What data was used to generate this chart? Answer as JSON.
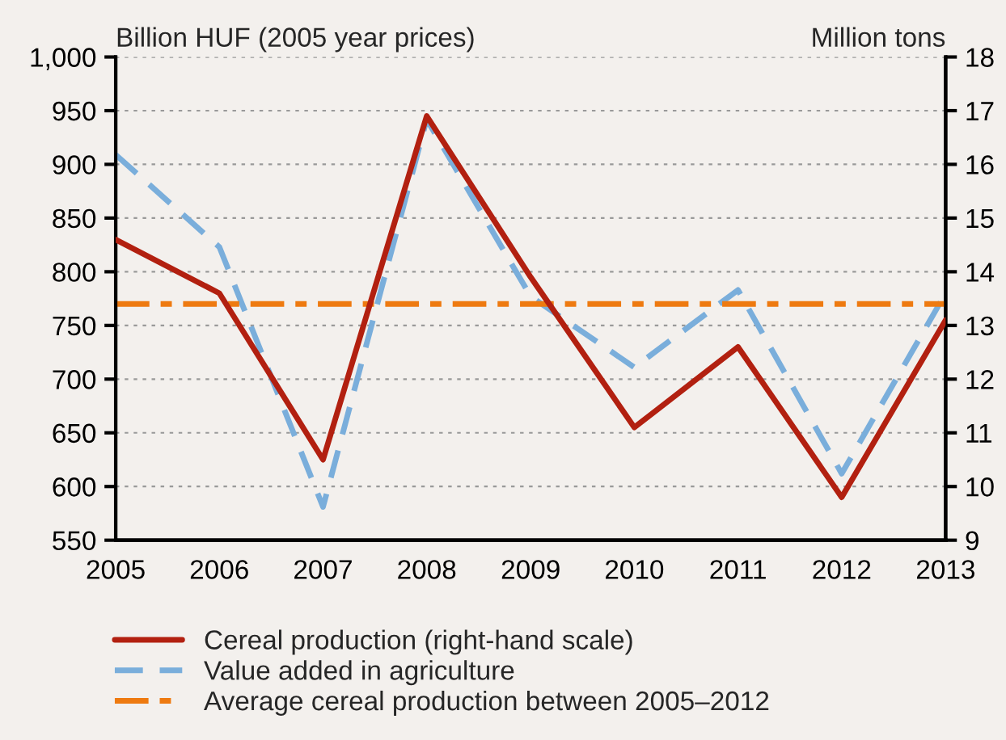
{
  "chart_data": {
    "type": "line",
    "x": [
      "2005",
      "2006",
      "2007",
      "2008",
      "2009",
      "2010",
      "2011",
      "2012",
      "2013"
    ],
    "xticks": [
      {
        "value": "2005",
        "label": "2005"
      },
      {
        "value": "2006",
        "label": "2006"
      },
      {
        "value": "2007",
        "label": "2007"
      },
      {
        "value": "2008",
        "label": "2008"
      },
      {
        "value": "2009",
        "label": "2009"
      },
      {
        "value": "2010",
        "label": "2010"
      },
      {
        "value": "2011",
        "label": "2011"
      },
      {
        "value": "2012",
        "label": "2012"
      },
      {
        "value": "2013",
        "label": "2013"
      }
    ],
    "xlim": [
      "2005",
      "2013"
    ],
    "ylabel": "Billion HUF (2005 year prices)",
    "y2label": "Million tons",
    "ylim": [
      550,
      1000
    ],
    "yticks": [
      550,
      600,
      650,
      700,
      750,
      800,
      850,
      900,
      950,
      {
        "value": 1000,
        "label": "1,000"
      }
    ],
    "y2lim": [
      9,
      18
    ],
    "y2ticks": [
      9,
      10,
      11,
      12,
      13,
      14,
      15,
      16,
      17,
      18
    ],
    "series": [
      {
        "name": "Cereal production (right-hand scale)",
        "color": "#b22010",
        "axis": "y2",
        "line_style": "solid",
        "values": [
          14.6,
          13.6,
          10.5,
          16.9,
          13.9,
          11.1,
          12.6,
          9.8,
          13.1
        ]
      },
      {
        "name": "Value added in agriculture",
        "color": "#7aaedb",
        "axis": "y",
        "line_style": "dashed",
        "values": [
          909,
          823,
          581,
          942,
          777,
          711,
          783,
          612,
          780
        ]
      }
    ],
    "ref_lines": [
      {
        "axis": "y2",
        "value": 13.4,
        "label": "Average cereal production between 2005–2012",
        "color": "#ee7a10",
        "line_style": "dashed"
      }
    ],
    "grid": "y",
    "legend": "bottom"
  }
}
